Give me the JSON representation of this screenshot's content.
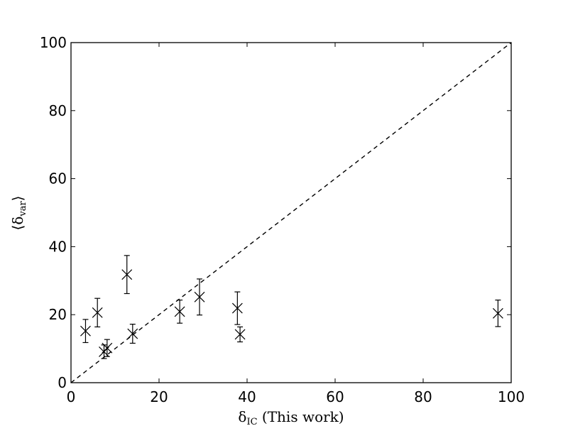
{
  "chart_data": {
    "type": "scatter",
    "title": "",
    "xlabel": "δ",
    "xlabel_sub": "IC",
    "xlabel_suffix": " (This work)",
    "ylabel_open": "⟨δ",
    "ylabel_sub": "var",
    "ylabel_close": "⟩",
    "xlim": [
      0,
      100
    ],
    "ylim": [
      0,
      100
    ],
    "xticks": [
      0,
      20,
      40,
      60,
      80,
      100
    ],
    "yticks": [
      0,
      20,
      40,
      60,
      80,
      100
    ],
    "grid": false,
    "marker": "x",
    "reference_line": {
      "style": "dashed",
      "x": [
        0,
        100
      ],
      "y": [
        0,
        100
      ]
    },
    "points": [
      {
        "x": 3.3,
        "y": 15.2,
        "err_low": 3.4,
        "err_high": 3.4
      },
      {
        "x": 6.0,
        "y": 20.6,
        "err_low": 4.2,
        "err_high": 4.2
      },
      {
        "x": 7.5,
        "y": 9.1,
        "err_low": 2.0,
        "err_high": 2.0
      },
      {
        "x": 8.2,
        "y": 10.2,
        "err_low": 2.5,
        "err_high": 2.5
      },
      {
        "x": 12.7,
        "y": 31.8,
        "err_low": 5.6,
        "err_high": 5.6
      },
      {
        "x": 14.0,
        "y": 14.4,
        "err_low": 2.8,
        "err_high": 2.8
      },
      {
        "x": 24.7,
        "y": 20.9,
        "err_low": 3.4,
        "err_high": 3.4
      },
      {
        "x": 29.2,
        "y": 25.2,
        "err_low": 5.3,
        "err_high": 5.3
      },
      {
        "x": 37.8,
        "y": 21.9,
        "err_low": 4.8,
        "err_high": 4.8
      },
      {
        "x": 38.4,
        "y": 14.2,
        "err_low": 2.2,
        "err_high": 2.2
      },
      {
        "x": 97.0,
        "y": 20.4,
        "err_low": 3.9,
        "err_high": 3.9
      }
    ]
  }
}
